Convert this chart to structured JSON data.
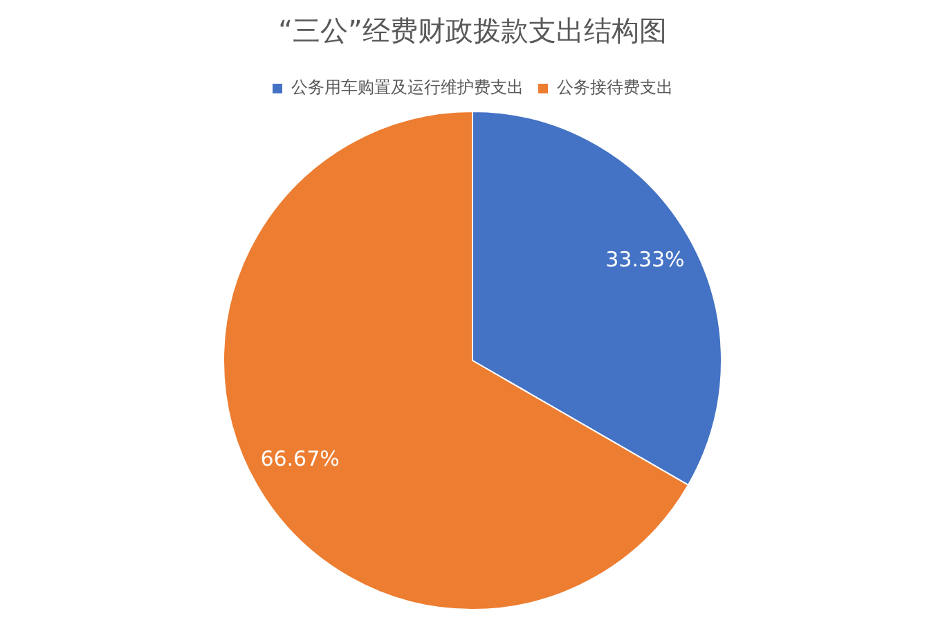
{
  "chart_data": {
    "type": "pie",
    "title": "“三公”经费财政拨款支出结构图",
    "categories": [
      "公务用车购置及运行维护费支出",
      "公务接待费支出"
    ],
    "values": [
      33.33,
      66.67
    ],
    "colors": [
      "#4472c4",
      "#ed7d31"
    ],
    "value_labels": [
      "33.33%",
      "66.67%"
    ],
    "legend": "top"
  }
}
